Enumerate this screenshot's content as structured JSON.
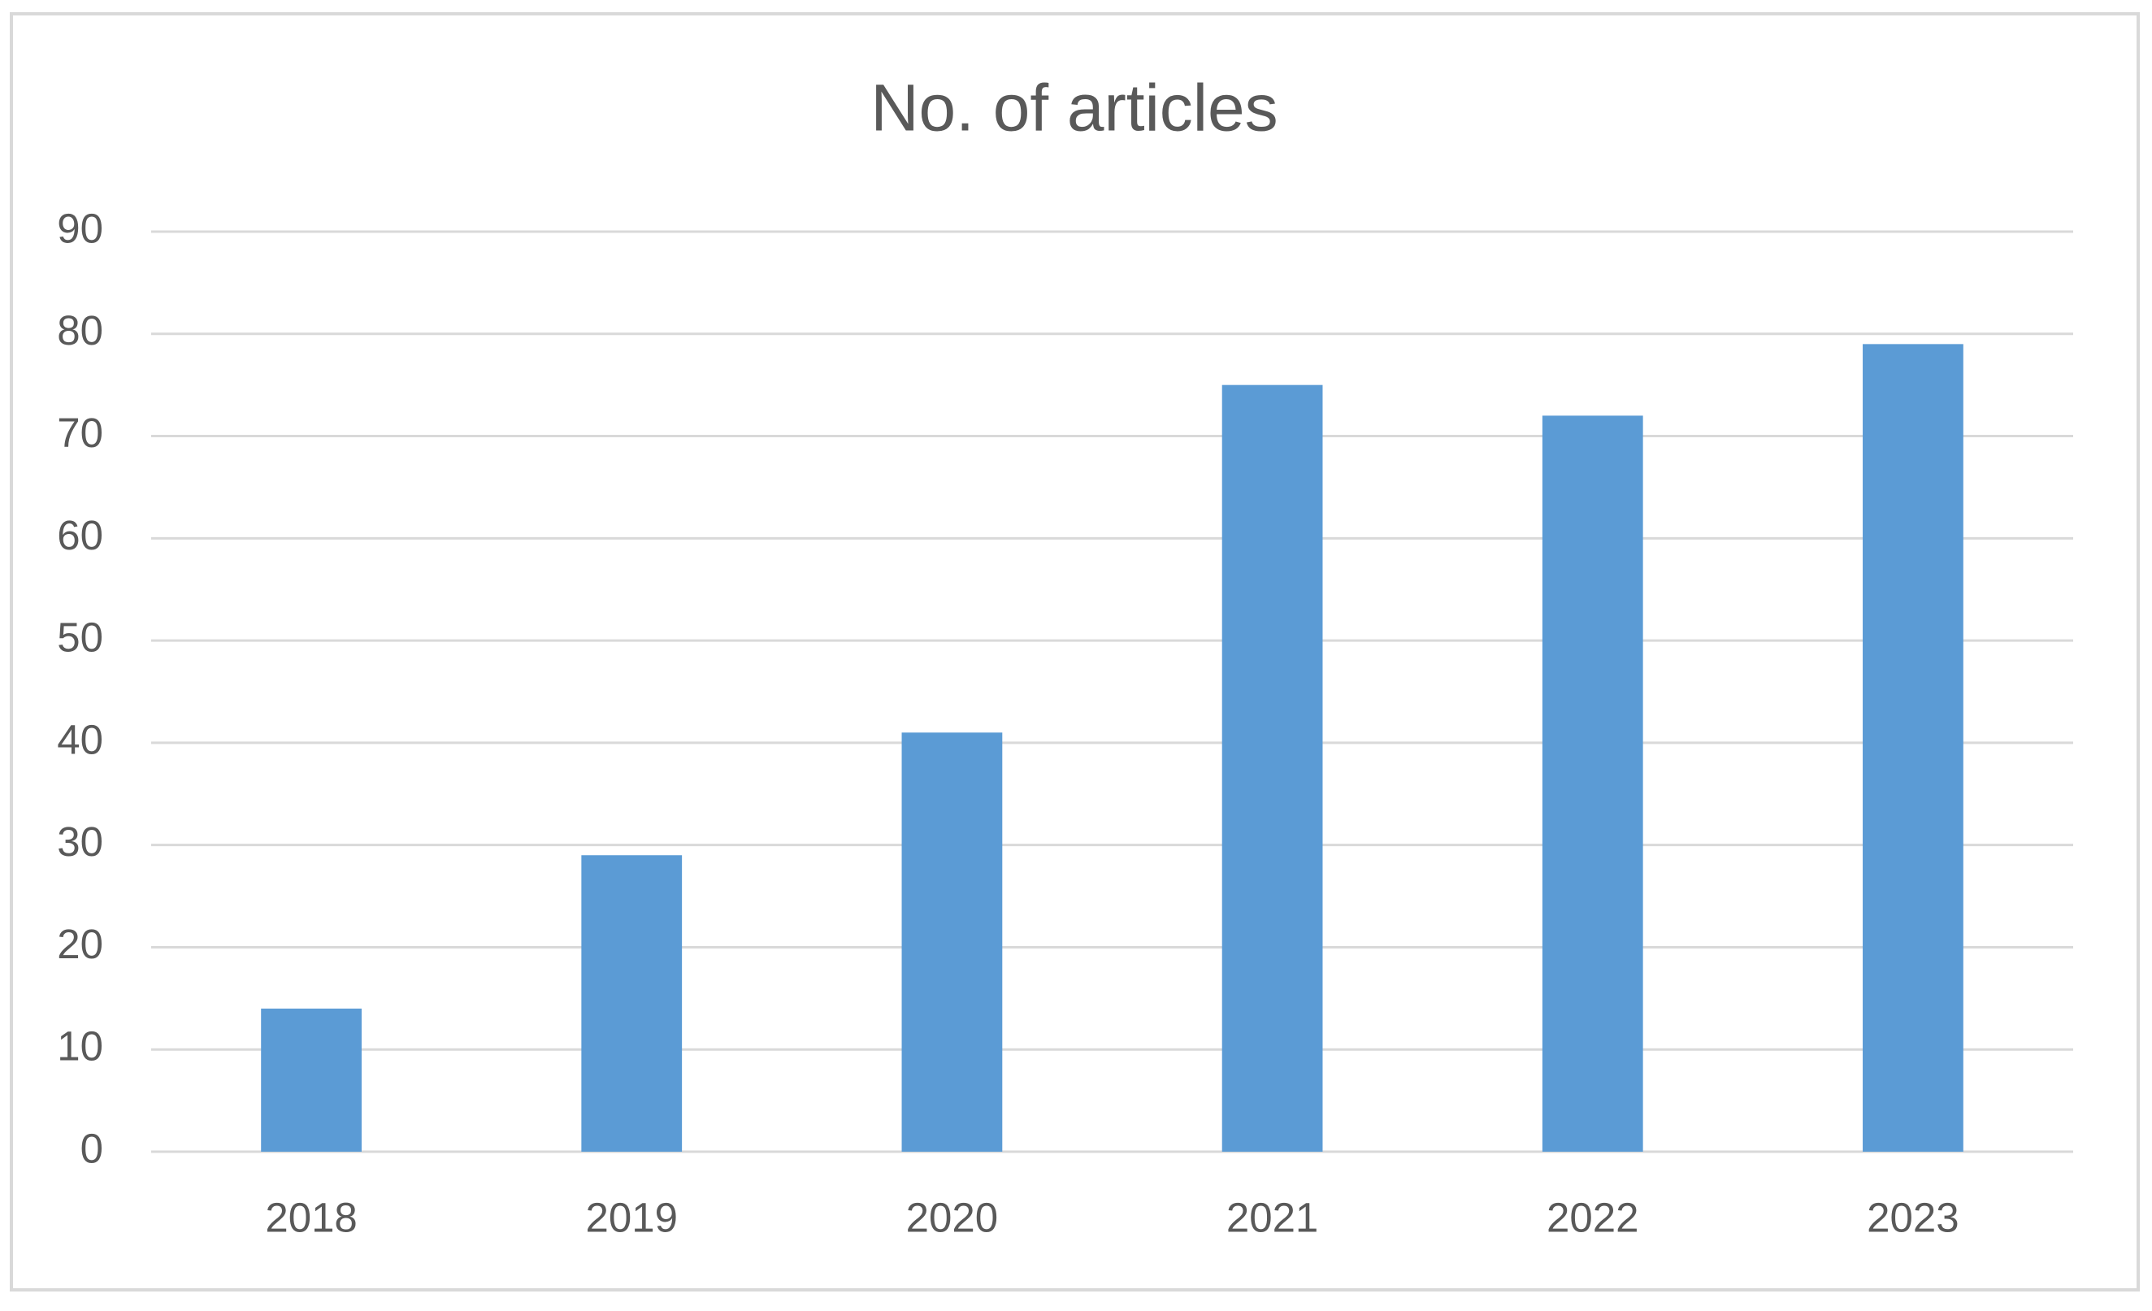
{
  "chart_data": {
    "type": "bar",
    "title": "No. of articles",
    "categories": [
      "2018",
      "2019",
      "2020",
      "2021",
      "2022",
      "2023"
    ],
    "values": [
      14,
      29,
      41,
      75,
      72,
      79
    ],
    "color": "#5b9bd5",
    "ylim": [
      0,
      90
    ],
    "yticks": [
      0,
      10,
      20,
      30,
      40,
      50,
      60,
      70,
      80,
      90
    ],
    "grid": true
  }
}
